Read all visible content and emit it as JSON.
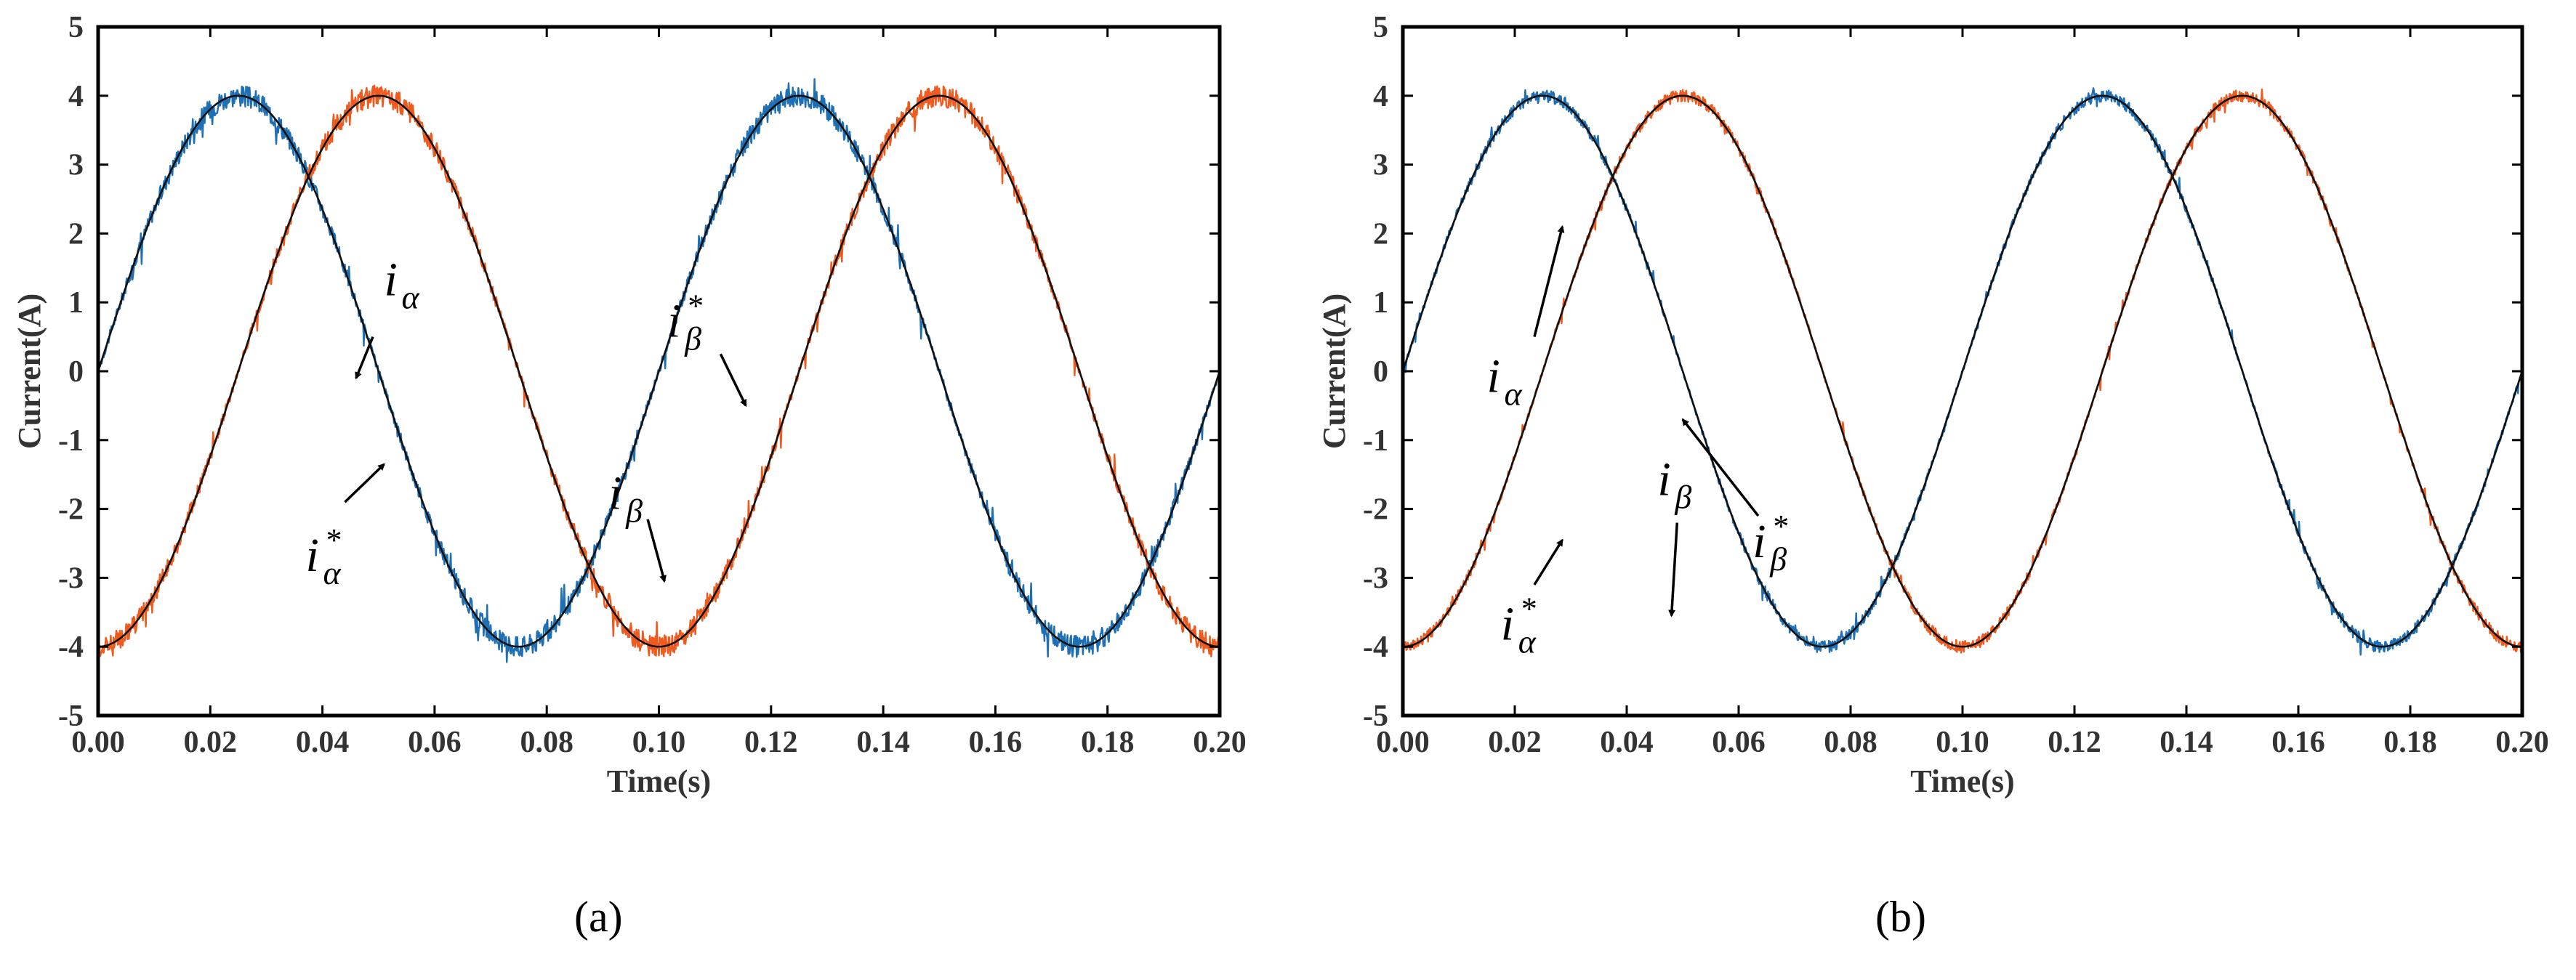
{
  "colors": {
    "alpha": "#1f6fb4",
    "beta": "#ef5a1f",
    "reference": "#111111",
    "axis": "#000000"
  },
  "chart_data": [
    {
      "type": "line",
      "panel": "(a)",
      "xlabel": "Time(s)",
      "ylabel": "Current(A)",
      "xlim": [
        0,
        0.2
      ],
      "ylim": [
        -5,
        5
      ],
      "xticks": [
        "0.00",
        "0.02",
        "0.04",
        "0.06",
        "0.08",
        "0.10",
        "0.12",
        "0.14",
        "0.16",
        "0.18",
        "0.20"
      ],
      "yticks": [
        "-5",
        "-4",
        "-3",
        "-2",
        "-1",
        "0",
        "1",
        "2",
        "3",
        "4",
        "5"
      ],
      "series": [
        {
          "name": "i_alpha",
          "color": "#1f6fb4",
          "amplitude": 4,
          "frequency_hz": 10,
          "phase_deg": 0,
          "noise": "high-frequency ripple near peaks"
        },
        {
          "name": "i_beta",
          "color": "#ef5a1f",
          "amplitude": 4,
          "frequency_hz": 10,
          "phase_deg": -90,
          "noise": "high-frequency ripple near peaks"
        },
        {
          "name": "i_alpha_ref",
          "color": "#111111",
          "amplitude": 4,
          "frequency_hz": 10,
          "phase_deg": 0
        },
        {
          "name": "i_beta_ref",
          "color": "#111111",
          "amplitude": 4,
          "frequency_hz": 10,
          "phase_deg": -90
        }
      ],
      "annotations": [
        {
          "base": "i",
          "sub": "α",
          "sup": "",
          "text_at": [
            0.051,
            1.1
          ],
          "arrow_from": [
            0.049,
            0.5
          ],
          "arrow_to": [
            0.046,
            -0.1
          ]
        },
        {
          "base": "i",
          "sub": "α",
          "sup": "*",
          "text_at": [
            0.037,
            -2.9
          ],
          "arrow_from": [
            0.044,
            -1.9
          ],
          "arrow_to": [
            0.051,
            -1.35
          ]
        },
        {
          "base": "i",
          "sub": "β",
          "sup": "",
          "text_at": [
            0.091,
            -2.0
          ],
          "arrow_from": [
            0.098,
            -2.15
          ],
          "arrow_to": [
            0.101,
            -3.05
          ]
        },
        {
          "base": "i",
          "sub": "β",
          "sup": "*",
          "text_at": [
            0.1015,
            0.5
          ],
          "arrow_from": [
            0.111,
            0.25
          ],
          "arrow_to": [
            0.1155,
            -0.5
          ]
        }
      ]
    },
    {
      "type": "line",
      "panel": "(b)",
      "xlabel": "Time(s)",
      "ylabel": "Current(A)",
      "xlim": [
        0,
        0.2
      ],
      "ylim": [
        -5,
        5
      ],
      "xticks": [
        "0.00",
        "0.02",
        "0.04",
        "0.06",
        "0.08",
        "0.10",
        "0.12",
        "0.14",
        "0.16",
        "0.18",
        "0.20"
      ],
      "yticks": [
        "-5",
        "-4",
        "-3",
        "-2",
        "-1",
        "0",
        "1",
        "2",
        "3",
        "4",
        "5"
      ],
      "series": [
        {
          "name": "i_alpha",
          "color": "#1f6fb4",
          "amplitude": 4,
          "frequency_hz": 10,
          "phase_deg": 0,
          "noise": "low ripple"
        },
        {
          "name": "i_beta",
          "color": "#ef5a1f",
          "amplitude": 4,
          "frequency_hz": 10,
          "phase_deg": -90,
          "noise": "low ripple"
        },
        {
          "name": "i_alpha_ref",
          "color": "#111111",
          "amplitude": 4,
          "frequency_hz": 10,
          "phase_deg": 0
        },
        {
          "name": "i_beta_ref",
          "color": "#111111",
          "amplitude": 4,
          "frequency_hz": 10,
          "phase_deg": -90
        }
      ],
      "annotations": [
        {
          "base": "i",
          "sub": "α",
          "sup": "",
          "text_at": [
            0.015,
            -0.3
          ],
          "arrow_from": [
            0.0235,
            0.5
          ],
          "arrow_to": [
            0.0285,
            2.1
          ]
        },
        {
          "base": "i",
          "sub": "α",
          "sup": "*",
          "text_at": [
            0.0175,
            -3.9
          ],
          "arrow_from": [
            0.0235,
            -3.1
          ],
          "arrow_to": [
            0.0285,
            -2.45
          ]
        },
        {
          "base": "i",
          "sub": "β",
          "sup": "",
          "text_at": [
            0.0455,
            -1.8
          ],
          "arrow_from": [
            0.049,
            -2.2
          ],
          "arrow_to": [
            0.048,
            -3.55
          ]
        },
        {
          "base": "i",
          "sub": "β",
          "sup": "*",
          "text_at": [
            0.0625,
            -2.7
          ],
          "arrow_from": [
            0.0635,
            -2.1
          ],
          "arrow_to": [
            0.05,
            -0.7
          ]
        }
      ]
    }
  ],
  "panels": {
    "a": "(a)",
    "b": "(b)"
  }
}
